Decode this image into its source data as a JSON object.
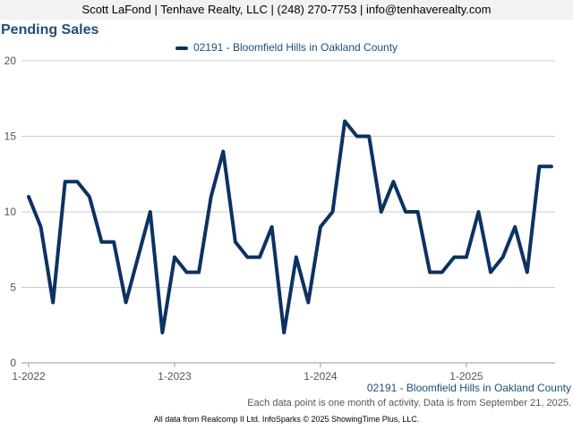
{
  "header": {
    "contact": "Scott LaFond | Tenhave Realty, LLC | (248) 270-7753 | info@tenhaverealty.com"
  },
  "page_title": "Pending Sales",
  "legend_label": "02191 - Bloomfield Hills in Oakland County",
  "series_label": "02191 - Bloomfield Hills in Oakland County",
  "note": "Each data point is one month of activity. Data is from September 21, 2025.",
  "footer": "All data from Realcomp II Ltd. InfoSparks © 2025 ShowingTime Plus, LLC.",
  "colors": {
    "series": "#0c3263",
    "grid": "#cccccc",
    "title": "#1f4e79"
  },
  "chart_data": {
    "type": "line",
    "title": "Pending Sales",
    "xlabel": "",
    "ylabel": "",
    "ylim": [
      0,
      20
    ],
    "yticks": [
      "0",
      "5",
      "10",
      "15",
      "20"
    ],
    "xticks": [
      {
        "label": "1-2022",
        "index": 0
      },
      {
        "label": "1-2023",
        "index": 12
      },
      {
        "label": "1-2024",
        "index": 24
      },
      {
        "label": "1-2025",
        "index": 36
      }
    ],
    "grid": true,
    "legend": "top",
    "series": [
      {
        "name": "02191 - Bloomfield Hills in Oakland County",
        "x": [
          "1-2022",
          "2-2022",
          "3-2022",
          "4-2022",
          "5-2022",
          "6-2022",
          "7-2022",
          "8-2022",
          "9-2022",
          "10-2022",
          "11-2022",
          "12-2022",
          "1-2023",
          "2-2023",
          "3-2023",
          "4-2023",
          "5-2023",
          "6-2023",
          "7-2023",
          "8-2023",
          "9-2023",
          "10-2023",
          "11-2023",
          "12-2023",
          "1-2024",
          "2-2024",
          "3-2024",
          "4-2024",
          "5-2024",
          "6-2024",
          "7-2024",
          "8-2024",
          "9-2024",
          "10-2024",
          "11-2024",
          "12-2024",
          "1-2025",
          "2-2025",
          "3-2025",
          "4-2025",
          "5-2025",
          "6-2025",
          "7-2025",
          "8-2025"
        ],
        "values": [
          11,
          9,
          4,
          12,
          12,
          11,
          8,
          8,
          4,
          7,
          10,
          2,
          7,
          6,
          6,
          11,
          14,
          8,
          7,
          7,
          9,
          2,
          7,
          4,
          9,
          10,
          16,
          15,
          15,
          10,
          12,
          10,
          10,
          6,
          6,
          7,
          7,
          10,
          6,
          7,
          9,
          6,
          13,
          13
        ]
      }
    ]
  }
}
